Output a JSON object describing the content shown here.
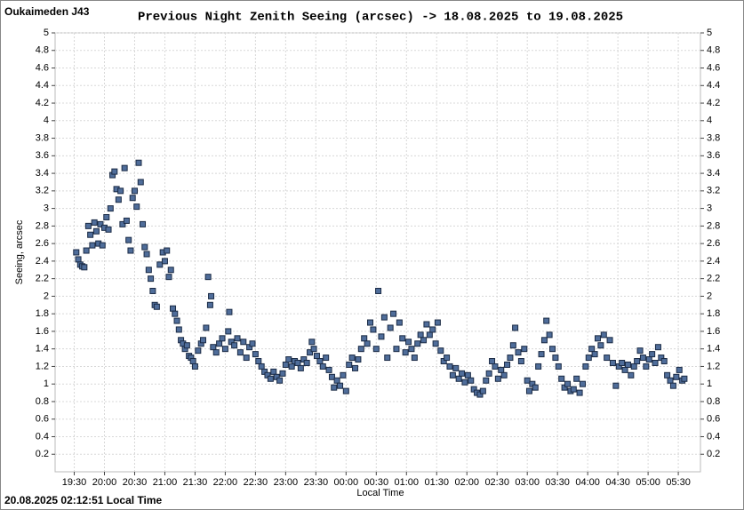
{
  "header": "Oukaimeden J43",
  "footer": "20.08.2025 02:12:51 Local Time",
  "chart_data": {
    "type": "scatter",
    "title": "Previous Night Zenith Seeing (arcsec) -> 18.08.2025 to 19.08.2025",
    "x_label": "Local Time",
    "y_label": "Seeing, arcsec",
    "color": "#4f6d9a",
    "grid": true,
    "xlim": [
      "19:11",
      "05:52"
    ],
    "ylim": [
      0,
      5
    ],
    "xticks": [
      "19:30",
      "20:00",
      "20:30",
      "21:00",
      "21:30",
      "22:00",
      "22:30",
      "23:00",
      "23:30",
      "00:00",
      "00:30",
      "01:00",
      "01:30",
      "02:00",
      "02:30",
      "03:00",
      "03:30",
      "04:00",
      "04:30",
      "05:00",
      "05:30"
    ],
    "yticks": [
      0.2,
      0.4,
      0.6,
      0.8,
      1,
      1.2,
      1.4,
      1.6,
      1.8,
      2,
      2.2,
      2.4,
      2.6,
      2.8,
      3,
      3.2,
      3.4,
      3.6,
      3.8,
      4,
      4.2,
      4.4,
      4.6,
      4.8,
      5
    ],
    "x": [
      "19:32",
      "19:34",
      "19:36",
      "19:38",
      "19:40",
      "19:42",
      "19:44",
      "19:46",
      "19:48",
      "19:50",
      "19:52",
      "19:54",
      "19:56",
      "19:58",
      "20:00",
      "20:02",
      "20:04",
      "20:06",
      "20:08",
      "20:10",
      "20:12",
      "20:14",
      "20:16",
      "20:18",
      "20:20",
      "20:22",
      "20:24",
      "20:26",
      "20:28",
      "20:30",
      "20:32",
      "20:34",
      "20:36",
      "20:38",
      "20:40",
      "20:42",
      "20:44",
      "20:46",
      "20:48",
      "20:50",
      "20:52",
      "20:55",
      "20:58",
      "21:00",
      "21:02",
      "21:04",
      "21:06",
      "21:08",
      "21:10",
      "21:12",
      "21:14",
      "21:16",
      "21:18",
      "21:20",
      "21:22",
      "21:24",
      "21:26",
      "21:28",
      "21:30",
      "21:33",
      "21:36",
      "21:38",
      "21:41",
      "21:43",
      "21:45",
      "21:46",
      "21:48",
      "21:51",
      "21:54",
      "21:57",
      "22:00",
      "22:03",
      "22:04",
      "22:06",
      "22:09",
      "22:12",
      "22:15",
      "22:18",
      "22:21",
      "22:24",
      "22:27",
      "22:30",
      "22:33",
      "22:36",
      "22:39",
      "22:42",
      "22:45",
      "22:48",
      "22:51",
      "22:54",
      "22:57",
      "23:00",
      "23:03",
      "23:06",
      "23:09",
      "23:12",
      "23:15",
      "23:18",
      "23:21",
      "23:24",
      "23:26",
      "23:28",
      "23:31",
      "23:34",
      "23:37",
      "23:40",
      "23:43",
      "23:46",
      "23:48",
      "23:51",
      "23:54",
      "23:57",
      "00:00",
      "00:03",
      "00:06",
      "00:09",
      "00:12",
      "00:15",
      "00:18",
      "00:21",
      "00:24",
      "00:27",
      "00:30",
      "00:32",
      "00:35",
      "00:38",
      "00:41",
      "00:44",
      "00:47",
      "00:50",
      "00:53",
      "00:56",
      "00:59",
      "01:02",
      "01:05",
      "01:08",
      "01:11",
      "01:14",
      "01:17",
      "01:20",
      "01:23",
      "01:26",
      "01:29",
      "01:31",
      "01:34",
      "01:37",
      "01:40",
      "01:43",
      "01:46",
      "01:49",
      "01:52",
      "01:55",
      "01:58",
      "02:01",
      "02:04",
      "02:07",
      "02:10",
      "02:13",
      "02:16",
      "02:19",
      "02:22",
      "02:25",
      "02:28",
      "02:31",
      "02:34",
      "02:37",
      "02:40",
      "02:43",
      "02:46",
      "02:48",
      "02:51",
      "02:54",
      "02:57",
      "03:00",
      "03:02",
      "03:05",
      "03:08",
      "03:11",
      "03:14",
      "03:17",
      "03:19",
      "03:22",
      "03:25",
      "03:28",
      "03:31",
      "03:34",
      "03:37",
      "03:40",
      "03:43",
      "03:46",
      "03:49",
      "03:52",
      "03:55",
      "03:58",
      "04:01",
      "04:04",
      "04:07",
      "04:10",
      "04:13",
      "04:16",
      "04:19",
      "04:22",
      "04:25",
      "04:28",
      "04:31",
      "04:34",
      "04:37",
      "04:40",
      "04:43",
      "04:46",
      "04:49",
      "04:52",
      "04:55",
      "04:58",
      "05:01",
      "05:04",
      "05:07",
      "05:10",
      "05:13",
      "05:16",
      "05:19",
      "05:22",
      "05:25",
      "05:28",
      "05:31",
      "05:34",
      "05:36"
    ],
    "values": [
      2.5,
      2.42,
      2.36,
      2.34,
      2.33,
      2.52,
      2.8,
      2.7,
      2.58,
      2.84,
      2.74,
      2.6,
      2.82,
      2.58,
      2.78,
      2.9,
      2.76,
      3.0,
      3.38,
      3.42,
      3.22,
      3.1,
      3.2,
      2.82,
      3.46,
      2.86,
      2.64,
      2.52,
      3.12,
      3.2,
      3.02,
      3.52,
      3.3,
      2.82,
      2.56,
      2.48,
      2.3,
      2.2,
      2.06,
      1.9,
      1.88,
      2.36,
      2.5,
      2.4,
      2.52,
      2.22,
      2.3,
      1.86,
      1.8,
      1.72,
      1.62,
      1.5,
      1.46,
      1.4,
      1.44,
      1.32,
      1.3,
      1.26,
      1.2,
      1.38,
      1.46,
      1.5,
      1.64,
      2.22,
      1.9,
      2.0,
      1.42,
      1.36,
      1.46,
      1.52,
      1.4,
      1.6,
      1.82,
      1.48,
      1.44,
      1.52,
      1.36,
      1.48,
      1.3,
      1.42,
      1.46,
      1.34,
      1.26,
      1.2,
      1.14,
      1.1,
      1.06,
      1.14,
      1.08,
      1.04,
      1.12,
      1.22,
      1.28,
      1.2,
      1.26,
      1.24,
      1.18,
      1.28,
      1.24,
      1.36,
      1.48,
      1.4,
      1.32,
      1.26,
      1.2,
      1.3,
      1.16,
      1.08,
      0.96,
      1.04,
      0.98,
      1.1,
      0.92,
      1.22,
      1.3,
      1.18,
      1.28,
      1.4,
      1.52,
      1.46,
      1.7,
      1.62,
      1.4,
      2.06,
      1.54,
      1.76,
      1.3,
      1.64,
      1.8,
      1.4,
      1.7,
      1.52,
      1.36,
      1.48,
      1.4,
      1.3,
      1.46,
      1.56,
      1.5,
      1.68,
      1.56,
      1.62,
      1.46,
      1.7,
      1.38,
      1.26,
      1.3,
      1.2,
      1.1,
      1.18,
      1.06,
      1.12,
      1.02,
      1.1,
      1.04,
      0.94,
      0.9,
      0.88,
      0.92,
      1.04,
      1.12,
      1.26,
      1.2,
      1.06,
      1.16,
      1.1,
      1.22,
      1.3,
      1.44,
      1.64,
      1.36,
      1.26,
      1.4,
      1.04,
      0.92,
      1.0,
      0.96,
      1.2,
      1.34,
      1.5,
      1.72,
      1.56,
      1.4,
      1.3,
      1.2,
      1.06,
      0.96,
      1.0,
      0.92,
      0.94,
      1.06,
      0.9,
      1.0,
      1.2,
      1.3,
      1.4,
      1.34,
      1.52,
      1.44,
      1.56,
      1.3,
      1.5,
      1.24,
      0.98,
      1.2,
      1.24,
      1.16,
      1.22,
      1.1,
      1.2,
      1.26,
      1.38,
      1.3,
      1.2,
      1.28,
      1.34,
      1.24,
      1.42,
      1.3,
      1.26,
      1.1,
      1.04,
      0.98,
      1.08,
      1.16,
      1.04,
      1.06
    ]
  }
}
